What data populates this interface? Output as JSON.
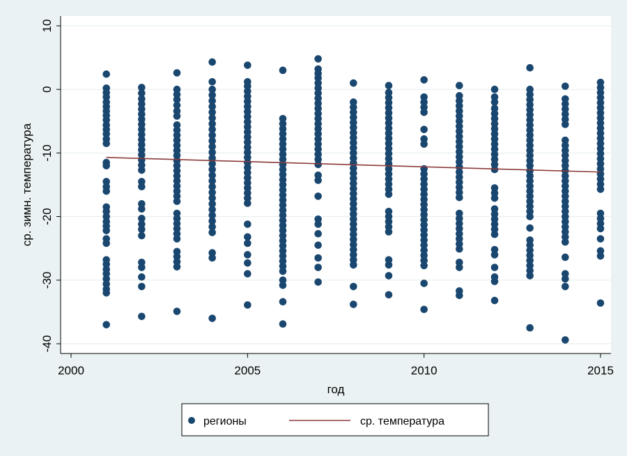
{
  "chart_data": {
    "type": "scatter",
    "xlabel": "год",
    "ylabel": "ср. зимн. температура",
    "xlim": [
      2000,
      2015
    ],
    "ylim": [
      -41,
      10
    ],
    "x_ticks": [
      2000,
      2005,
      2010,
      2015
    ],
    "y_ticks": [
      10,
      0,
      -10,
      -20,
      -30,
      -40
    ],
    "grid": "horizontal",
    "legend_position": "bottom",
    "colors": {
      "background": "#eaf2f3",
      "plot_area": "#ffffff",
      "points": "#1a476f",
      "line": "#8b3a3a",
      "grid": "#e3ebed"
    },
    "series": [
      {
        "name": "регионы",
        "kind": "scatter",
        "points": [
          {
            "x": 2001,
            "y": [
              2.4,
              0.2,
              -0.5,
              -1.2,
              -2.0,
              -2.7,
              -3.4,
              -4.1,
              -4.8,
              -5.6,
              -6.3,
              -7.0,
              -7.8,
              -8.5,
              -11.5,
              -12.0,
              -14.5,
              -15.3,
              -16.0,
              -18.5,
              -19.2,
              -20.0,
              -20.8,
              -21.5,
              -22.2,
              -23.5,
              -24.2,
              -26.8,
              -27.5,
              -28.3,
              -29.0,
              -29.8,
              -30.6,
              -31.4,
              -32.0,
              -37.0
            ]
          },
          {
            "x": 2002,
            "y": [
              0.3,
              -0.6,
              -1.5,
              -2.3,
              -3.1,
              -3.9,
              -4.7,
              -5.5,
              -6.3,
              -7.1,
              -7.9,
              -8.7,
              -9.5,
              -10.3,
              -11.1,
              -11.9,
              -12.7,
              -14.5,
              -15.3,
              -18.0,
              -18.8,
              -20.3,
              -21.2,
              -22.0,
              -23.0,
              -27.2,
              -28.0,
              -29.5,
              -31.0,
              -35.7
            ]
          },
          {
            "x": 2003,
            "y": [
              2.6,
              0.0,
              -0.8,
              -1.6,
              -2.5,
              -3.4,
              -4.2,
              -5.6,
              -6.4,
              -7.2,
              -8.0,
              -8.8,
              -9.6,
              -10.4,
              -11.2,
              -12.0,
              -12.8,
              -13.6,
              -14.4,
              -15.2,
              -16.0,
              -16.8,
              -17.6,
              -19.5,
              -20.3,
              -21.1,
              -21.9,
              -22.7,
              -23.5,
              -25.5,
              -26.3,
              -27.1,
              -27.9,
              -34.9
            ]
          },
          {
            "x": 2004,
            "y": [
              4.3,
              1.2,
              0.0,
              -0.9,
              -1.8,
              -2.7,
              -3.6,
              -4.5,
              -5.4,
              -6.3,
              -7.2,
              -8.1,
              -9.0,
              -9.9,
              -10.8,
              -11.7,
              -12.6,
              -13.5,
              -14.4,
              -15.3,
              -16.2,
              -17.1,
              -18.0,
              -18.9,
              -19.8,
              -20.7,
              -21.6,
              -22.5,
              -25.7,
              -26.5,
              -36.0
            ]
          },
          {
            "x": 2005,
            "y": [
              3.8,
              1.2,
              0.5,
              -0.3,
              -1.1,
              -1.9,
              -2.7,
              -3.5,
              -4.3,
              -5.1,
              -5.9,
              -6.7,
              -7.5,
              -8.3,
              -9.1,
              -9.9,
              -10.7,
              -11.5,
              -12.3,
              -13.1,
              -13.9,
              -14.7,
              -15.5,
              -16.3,
              -17.1,
              -17.9,
              -21.2,
              -23.2,
              -24.2,
              -26.0,
              -27.3,
              -29.0,
              -33.9
            ]
          },
          {
            "x": 2006,
            "y": [
              3.0,
              -4.6,
              -5.4,
              -6.2,
              -7.0,
              -7.8,
              -8.6,
              -9.4,
              -10.2,
              -11.0,
              -11.8,
              -12.6,
              -13.4,
              -14.2,
              -15.0,
              -15.8,
              -16.6,
              -17.4,
              -18.2,
              -19.0,
              -19.8,
              -20.6,
              -21.4,
              -22.2,
              -23.0,
              -23.8,
              -24.6,
              -25.4,
              -26.2,
              -27.0,
              -27.8,
              -28.6,
              -30.0,
              -30.8,
              -33.4,
              -36.9
            ]
          },
          {
            "x": 2007,
            "y": [
              4.8,
              3.2,
              2.5,
              1.8,
              1.0,
              0.2,
              -0.6,
              -1.4,
              -2.2,
              -3.0,
              -3.8,
              -4.6,
              -5.4,
              -6.2,
              -7.0,
              -7.8,
              -8.6,
              -9.4,
              -10.2,
              -11.0,
              -11.8,
              -13.5,
              -14.3,
              -16.8,
              -20.4,
              -21.2,
              -22.7,
              -24.5,
              -26.5,
              -28.0,
              -30.3
            ]
          },
          {
            "x": 2008,
            "y": [
              1.0,
              -2.0,
              -2.8,
              -3.6,
              -4.4,
              -5.2,
              -6.0,
              -6.8,
              -7.6,
              -8.4,
              -9.2,
              -10.0,
              -10.8,
              -11.6,
              -12.4,
              -13.2,
              -14.0,
              -14.8,
              -15.6,
              -16.4,
              -17.2,
              -18.0,
              -18.8,
              -19.6,
              -20.4,
              -21.2,
              -22.0,
              -22.8,
              -23.6,
              -24.4,
              -25.2,
              -26.0,
              -26.8,
              -27.6,
              -31.0,
              -33.8
            ]
          },
          {
            "x": 2009,
            "y": [
              0.6,
              -0.5,
              -1.3,
              -2.1,
              -2.9,
              -3.7,
              -4.5,
              -5.3,
              -6.1,
              -6.9,
              -7.7,
              -8.5,
              -9.3,
              -10.1,
              -10.9,
              -11.7,
              -12.5,
              -13.3,
              -14.1,
              -14.9,
              -15.7,
              -16.5,
              -19.2,
              -20.0,
              -20.8,
              -21.6,
              -22.4,
              -26.8,
              -27.6,
              -29.3,
              -32.3
            ]
          },
          {
            "x": 2010,
            "y": [
              1.5,
              -1.2,
              -2.0,
              -2.8,
              -3.6,
              -6.3,
              -7.8,
              -8.6,
              -12.5,
              -13.3,
              -14.1,
              -14.9,
              -15.7,
              -16.5,
              -17.3,
              -18.1,
              -18.9,
              -19.7,
              -20.5,
              -21.3,
              -22.1,
              -22.9,
              -23.7,
              -24.5,
              -25.3,
              -26.1,
              -26.9,
              -27.7,
              -30.5,
              -34.6
            ]
          },
          {
            "x": 2011,
            "y": [
              0.6,
              -1.0,
              -1.8,
              -2.6,
              -3.4,
              -4.2,
              -5.0,
              -5.8,
              -6.6,
              -7.4,
              -8.2,
              -9.0,
              -9.8,
              -10.6,
              -11.4,
              -12.2,
              -13.0,
              -13.8,
              -14.6,
              -15.4,
              -16.2,
              -17.0,
              -19.5,
              -20.3,
              -21.1,
              -21.9,
              -22.7,
              -23.5,
              -24.3,
              -25.1,
              -27.2,
              -28.0,
              -31.7,
              -32.4
            ]
          },
          {
            "x": 2012,
            "y": [
              0.0,
              -1.2,
              -2.0,
              -3.0,
              -3.8,
              -4.6,
              -5.4,
              -6.2,
              -7.0,
              -7.8,
              -8.6,
              -9.4,
              -10.2,
              -11.0,
              -11.8,
              -12.6,
              -15.5,
              -16.3,
              -17.1,
              -18.8,
              -19.6,
              -20.4,
              -21.2,
              -22.0,
              -22.8,
              -25.2,
              -26.0,
              -28.0,
              -29.5,
              -30.2,
              -33.2
            ]
          },
          {
            "x": 2013,
            "y": [
              3.4,
              0.0,
              -0.8,
              -1.6,
              -2.4,
              -3.2,
              -4.0,
              -4.8,
              -5.6,
              -6.4,
              -7.2,
              -8.0,
              -8.8,
              -9.6,
              -10.4,
              -11.2,
              -12.0,
              -12.8,
              -13.6,
              -14.4,
              -15.2,
              -16.0,
              -16.8,
              -17.6,
              -18.4,
              -19.2,
              -20.0,
              -21.8,
              -23.7,
              -24.5,
              -25.3,
              -26.1,
              -26.9,
              -27.7,
              -28.5,
              -29.3,
              -37.5
            ]
          },
          {
            "x": 2014,
            "y": [
              0.5,
              -1.5,
              -2.3,
              -3.1,
              -3.9,
              -4.7,
              -5.5,
              -8.0,
              -8.8,
              -9.6,
              -10.4,
              -11.2,
              -12.0,
              -12.8,
              -13.6,
              -14.4,
              -15.2,
              -16.0,
              -16.8,
              -17.6,
              -18.4,
              -19.2,
              -20.0,
              -20.8,
              -21.6,
              -22.4,
              -23.2,
              -24.0,
              -26.4,
              -29.0,
              -29.8,
              -31.0,
              -39.4
            ]
          },
          {
            "x": 2015,
            "y": [
              1.1,
              0.3,
              -0.5,
              -1.3,
              -2.1,
              -2.9,
              -3.7,
              -4.5,
              -5.3,
              -6.1,
              -6.9,
              -7.7,
              -8.5,
              -9.3,
              -10.1,
              -10.9,
              -11.7,
              -12.5,
              -13.3,
              -14.1,
              -14.9,
              -15.7,
              -19.5,
              -20.3,
              -21.1,
              -21.9,
              -23.5,
              -25.4,
              -26.2,
              -33.6
            ]
          }
        ]
      },
      {
        "name": "ср. температура",
        "kind": "line",
        "x": [
          2001,
          2015
        ],
        "y": [
          -10.7,
          -13.0
        ]
      }
    ]
  }
}
